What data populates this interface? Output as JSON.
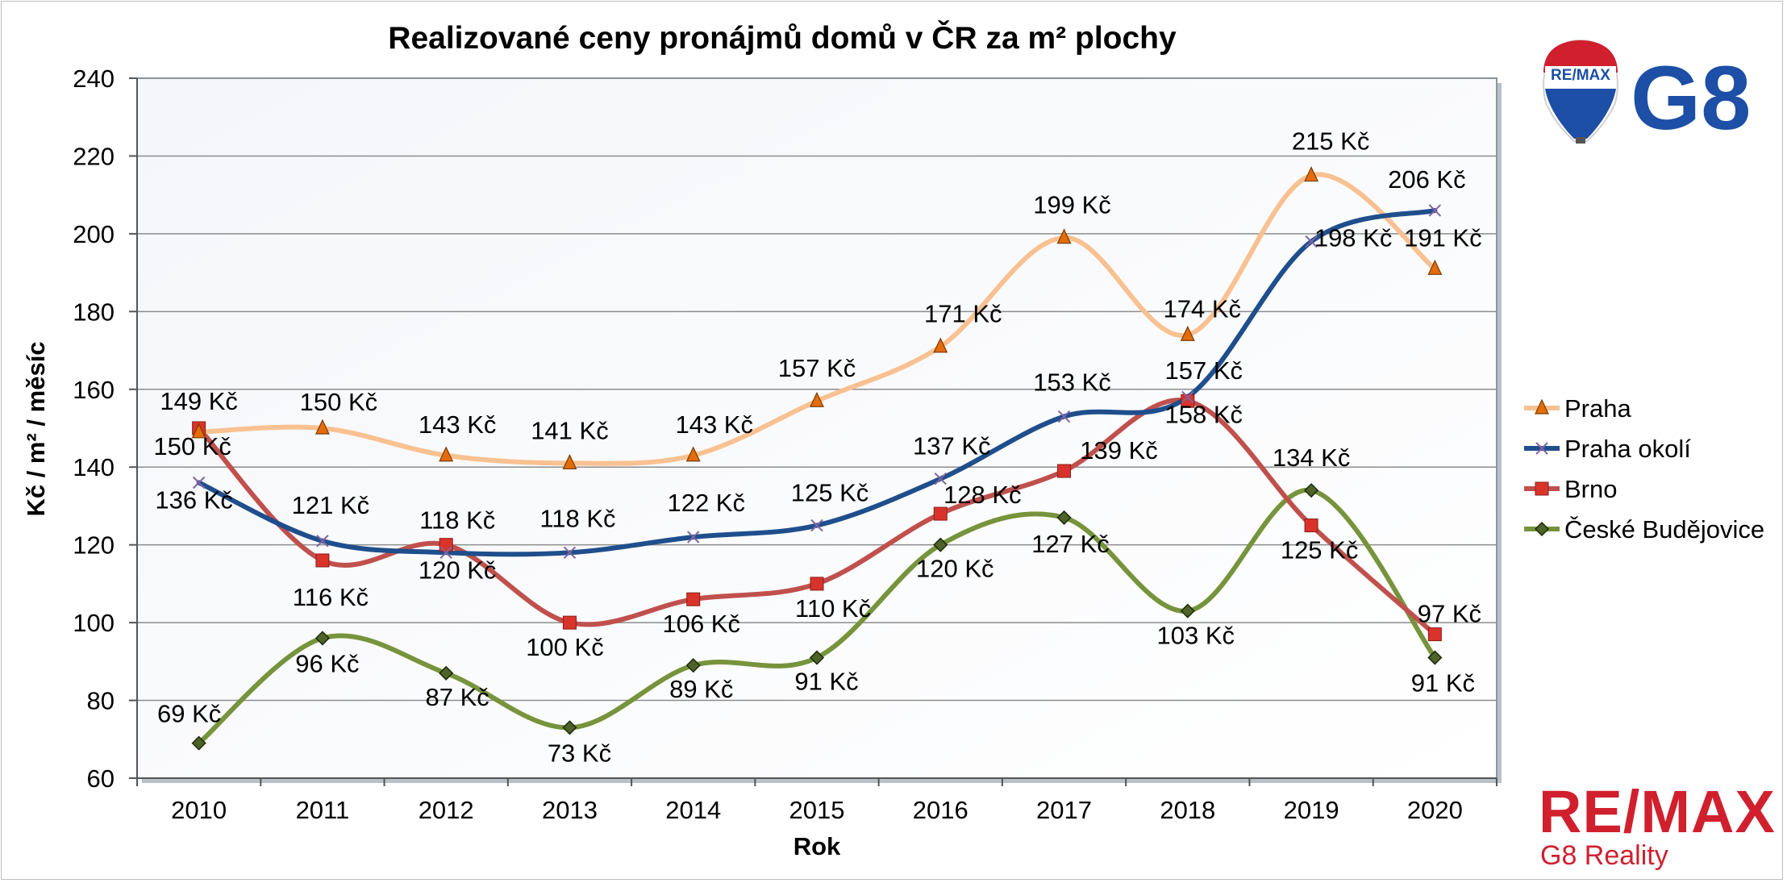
{
  "chart_data": {
    "type": "line",
    "title": "Realizované ceny pronájmů domů v ČR za m² plochy",
    "xlabel": "Rok",
    "ylabel": "Kč / m² / měsíc",
    "ylim": [
      60,
      240
    ],
    "yticks": [
      "60",
      "80",
      "100",
      "120",
      "140",
      "160",
      "180",
      "200",
      "220",
      "240"
    ],
    "categories": [
      "2010",
      "2011",
      "2012",
      "2013",
      "2014",
      "2015",
      "2016",
      "2017",
      "2018",
      "2019",
      "2020"
    ],
    "grid": true,
    "legend_position": "right",
    "series": [
      {
        "name": "Praha",
        "color": "#f9c191",
        "marker": "triangle",
        "marker_color": "#e46c0a",
        "values": [
          149,
          150,
          143,
          141,
          143,
          157,
          171,
          199,
          174,
          215,
          191
        ],
        "labels": [
          "149 Kč",
          "150 Kč",
          "143 Kč",
          "141 Kč",
          "143 Kč",
          "157 Kč",
          "171 Kč",
          "199 Kč",
          "174 Kč",
          "215 Kč",
          "191 Kč"
        ]
      },
      {
        "name": "Praha okolí",
        "color": "#1f4e8c",
        "marker": "x",
        "marker_color": "#8064a2",
        "values": [
          136,
          121,
          118,
          118,
          122,
          125,
          137,
          153,
          158,
          198,
          206
        ],
        "labels": [
          "136 Kč",
          "121 Kč",
          "118 Kč",
          "118 Kč",
          "122 Kč",
          "125 Kč",
          "137 Kč",
          "153 Kč",
          "158 Kč",
          "198 Kč",
          "206 Kč"
        ]
      },
      {
        "name": "Brno",
        "color": "#c0504d",
        "marker": "square",
        "marker_color": "#d9342b",
        "values": [
          150,
          116,
          120,
          100,
          106,
          110,
          128,
          139,
          157,
          125,
          97
        ],
        "labels": [
          "150 Kč",
          "116 Kč",
          "120 Kč",
          "100 Kč",
          "106 Kč",
          "110 Kč",
          "128 Kč",
          "139 Kč",
          "157 Kč",
          "125 Kč",
          "97 Kč"
        ]
      },
      {
        "name": "České Budějovice",
        "color": "#77933c",
        "marker": "diamond",
        "marker_color": "#4f6228",
        "values": [
          69,
          96,
          87,
          73,
          89,
          91,
          120,
          127,
          103,
          134,
          91
        ],
        "labels": [
          "69 Kč",
          "96 Kč",
          "87 Kč",
          "73 Kč",
          "89 Kč",
          "91 Kč",
          "120 Kč",
          "127 Kč",
          "103 Kč",
          "134 Kč",
          "91 Kč"
        ]
      }
    ]
  },
  "branding": {
    "top_logo_text": "G8",
    "balloon_text": "RE/MAX",
    "bottom_logo_text": "RE/MAX",
    "bottom_logo_subtitle": "G8 Reality"
  }
}
